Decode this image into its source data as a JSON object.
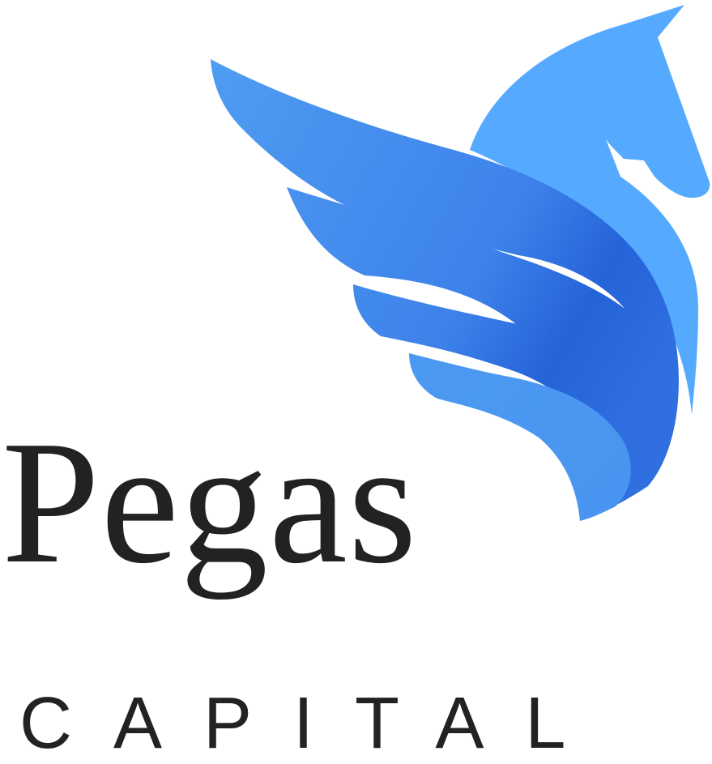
{
  "logo": {
    "brand_name": "Pegas",
    "tagline": "CAPITAL",
    "emblem": "pegasus-icon"
  },
  "colors": {
    "head": "#55aaff",
    "wing_light": "#4f9cf2",
    "wing_dark": "#2563d9",
    "text": "#222222",
    "background": "#ffffff"
  }
}
